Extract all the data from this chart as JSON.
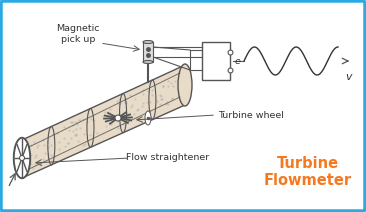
{
  "bg_color": "#ffffff",
  "border_color": "#29abe2",
  "border_width": 2.5,
  "title_text": "Turbine\nFlowmeter",
  "title_color": "#f47920",
  "title_fontsize": 10.5,
  "label_fontsize": 6.8,
  "label_color": "#333333",
  "labels": {
    "magnetic": "Magnetic\npick up",
    "turbine": "Turbine wheel",
    "flow": "Flow straightener",
    "v": "v",
    "e": "e"
  },
  "sine_color": "#333333",
  "body_fill": "#e8dcc8",
  "body_stroke": "#555555",
  "dot_fill": "#cccccc"
}
